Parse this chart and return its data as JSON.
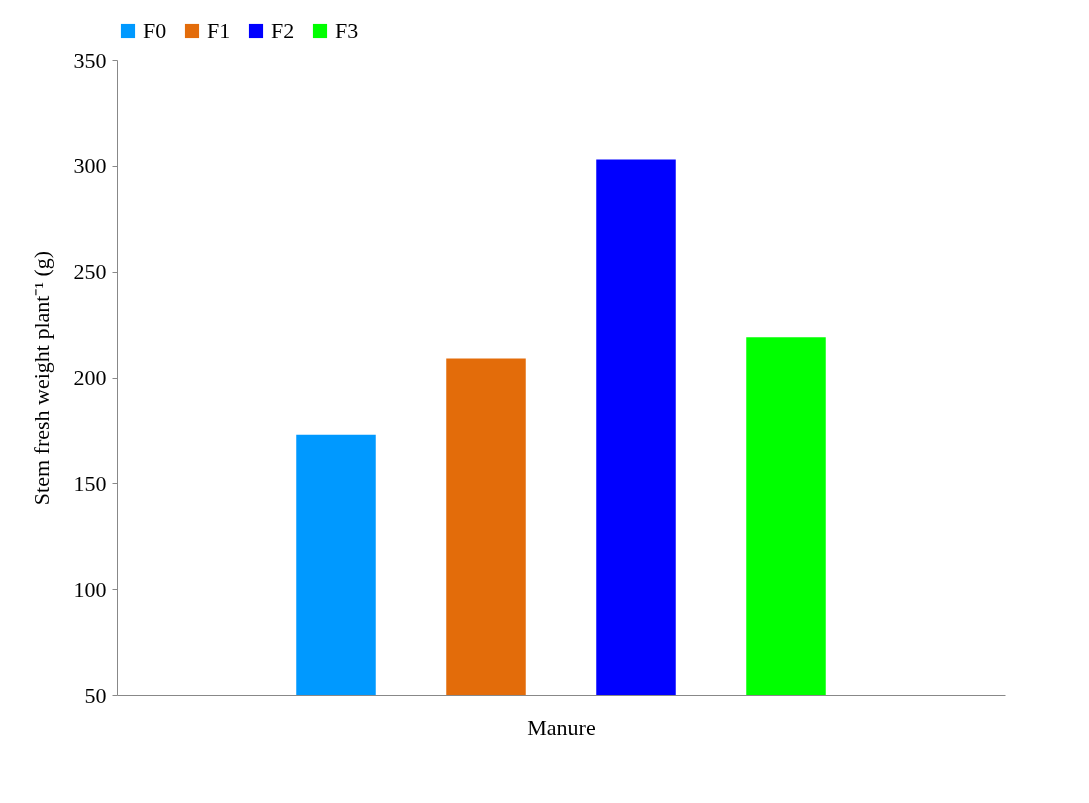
{
  "chart_data": {
    "type": "bar",
    "xlabel": "Manure",
    "ylabel": "Stem fresh weight plant⁻¹ (g)",
    "categories": [
      null
    ],
    "series": [
      {
        "name": "F0",
        "color": "#0099ff",
        "values": [
          173
        ]
      },
      {
        "name": "F1",
        "color": "#e36c0a",
        "values": [
          209
        ]
      },
      {
        "name": "F2",
        "color": "#0000ff",
        "values": [
          303
        ]
      },
      {
        "name": "F3",
        "color": "#00ff00",
        "values": [
          219
        ]
      }
    ],
    "ylim": [
      50,
      350
    ],
    "yticks": [
      50,
      100,
      150,
      200,
      250,
      300,
      350
    ],
    "grid": false,
    "legend": "top"
  }
}
